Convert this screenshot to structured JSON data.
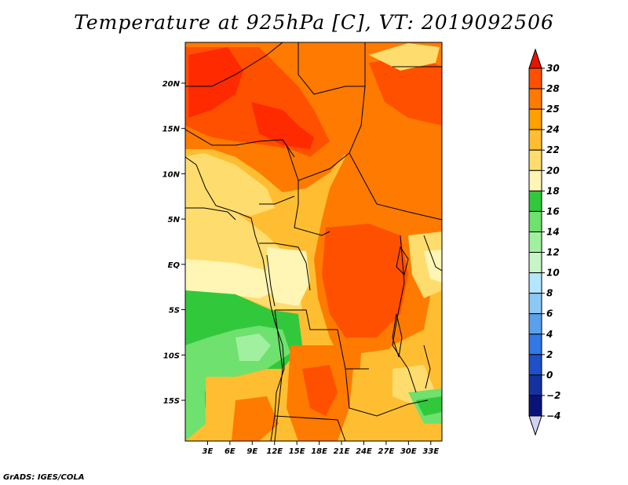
{
  "title": "Temperature at 925hPa [C], VT: 2019092506",
  "credit": "GrADS: IGES/COLA",
  "map": {
    "lon_range": [
      0,
      34.5
    ],
    "lat_range": [
      -19.5,
      24.5
    ],
    "lat_ticks": [
      {
        "value": 20,
        "label": "20N"
      },
      {
        "value": 15,
        "label": "15N"
      },
      {
        "value": 10,
        "label": "10N"
      },
      {
        "value": 5,
        "label": "5N"
      },
      {
        "value": 0,
        "label": "EQ"
      },
      {
        "value": -5,
        "label": "5S"
      },
      {
        "value": -10,
        "label": "10S"
      },
      {
        "value": -15,
        "label": "15S"
      }
    ],
    "lon_ticks": [
      {
        "value": 3,
        "label": "3E"
      },
      {
        "value": 6,
        "label": "6E"
      },
      {
        "value": 9,
        "label": "9E"
      },
      {
        "value": 12,
        "label": "12E"
      },
      {
        "value": 15,
        "label": "15E"
      },
      {
        "value": 18,
        "label": "18E"
      },
      {
        "value": 21,
        "label": "21E"
      },
      {
        "value": 24,
        "label": "24E"
      },
      {
        "value": 27,
        "label": "27E"
      },
      {
        "value": 30,
        "label": "30E"
      },
      {
        "value": 33,
        "label": "33E"
      }
    ]
  },
  "colorbar": {
    "levels": [
      {
        "label": "30",
        "color": "#ff2a00"
      },
      {
        "label": "28",
        "color": "#ff5000"
      },
      {
        "label": "25",
        "color": "#ff7a00"
      },
      {
        "label": "24",
        "color": "#ffa000"
      },
      {
        "label": "22",
        "color": "#ffbe32"
      },
      {
        "label": "20",
        "color": "#ffdc6e"
      },
      {
        "label": "18",
        "color": "#fff5b4"
      },
      {
        "label": "16",
        "color": "#32c83c"
      },
      {
        "label": "14",
        "color": "#6ee16e"
      },
      {
        "label": "12",
        "color": "#a0f0a0"
      },
      {
        "label": "10",
        "color": "#c8f5c8"
      },
      {
        "label": "8",
        "color": "#b4e6ff"
      },
      {
        "label": "6",
        "color": "#8cc8f5"
      },
      {
        "label": "4",
        "color": "#5aa0eb"
      },
      {
        "label": "2",
        "color": "#3278e6"
      },
      {
        "label": "0",
        "color": "#1e50c8"
      },
      {
        "label": "−2",
        "color": "#1432a0"
      },
      {
        "label": "−4",
        "color": "#0a1478"
      }
    ],
    "top_color": "#e61400",
    "bottom_color": "#d2d2f5"
  }
}
